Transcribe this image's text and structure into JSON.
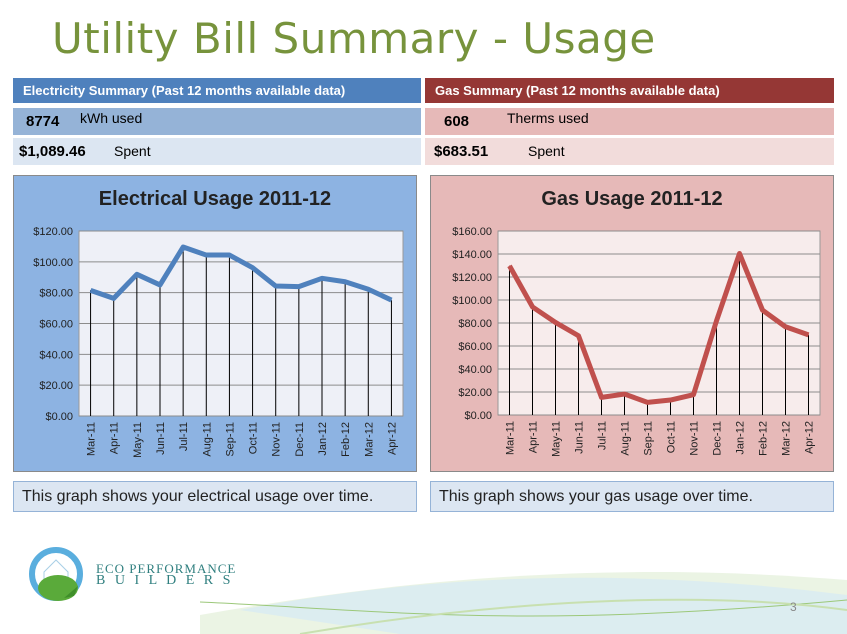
{
  "title": "Utility Bill Summary - Usage",
  "electricity": {
    "header": "Electricity Summary (Past 12 months available data)",
    "usage_value": "8774",
    "usage_label": "kWh used",
    "spent_value": "$1,089.46",
    "spent_label": "Spent",
    "caption": "This graph shows your electrical usage over time.",
    "colors": {
      "header": "#4f81bd",
      "row1": "#95b3d7",
      "row2": "#dce6f2",
      "panel": "#8db3e2",
      "plot": "#eef0f7",
      "line": "#4f81bd"
    }
  },
  "gas": {
    "header": "Gas Summary (Past 12 months available data)",
    "usage_value": "608",
    "usage_label": "Therms used",
    "spent_value": "$683.51",
    "spent_label": "Spent",
    "caption": "This graph shows your gas usage over time.",
    "colors": {
      "header": "#953735",
      "row1": "#e6b9b8",
      "row2": "#f2dcdb",
      "panel": "#e6b9b8",
      "plot": "#f7ecec",
      "line": "#c0504d"
    }
  },
  "chart_data": [
    {
      "type": "line",
      "title": "Electrical Usage 2011-12",
      "categories": [
        "Mar-11",
        "Apr-11",
        "May-11",
        "Jun-11",
        "Jul-11",
        "Aug-11",
        "Sep-11",
        "Oct-11",
        "Nov-11",
        "Dec-11",
        "Jan-12",
        "Feb-12",
        "Mar-12",
        "Apr-12"
      ],
      "values": [
        81.5,
        76.3,
        91.9,
        85,
        109.6,
        104.4,
        104.4,
        96.2,
        84.3,
        83.9,
        89.3,
        87.1,
        82.2,
        75.2
      ],
      "ylim": [
        0,
        120
      ],
      "yticks": [
        "$0.00",
        "$20.00",
        "$40.00",
        "$60.00",
        "$80.00",
        "$100.00",
        "$120.00"
      ],
      "grid": true,
      "drop_lines": true
    },
    {
      "type": "line",
      "title": "Gas Usage 2011-12",
      "categories": [
        "Mar-11",
        "Apr-11",
        "May-11",
        "Jun-11",
        "Jul-11",
        "Aug-11",
        "Sep-11",
        "Oct-11",
        "Nov-11",
        "Dec-11",
        "Jan-12",
        "Feb-12",
        "Mar-12",
        "Apr-12"
      ],
      "values": [
        129.7,
        94,
        80.5,
        68.9,
        15.3,
        18.2,
        11,
        13,
        17.7,
        81.9,
        140.4,
        91.2,
        76.7,
        69.7
      ],
      "ylim": [
        0,
        160
      ],
      "yticks": [
        "$0.00",
        "$20.00",
        "$40.00",
        "$60.00",
        "$80.00",
        "$100.00",
        "$120.00",
        "$140.00",
        "$160.00"
      ],
      "grid": true,
      "drop_lines": true
    }
  ],
  "logo": {
    "line1": "ECO PERFORMANCE",
    "line2": "B U I L D E R S"
  },
  "page_number": "3"
}
